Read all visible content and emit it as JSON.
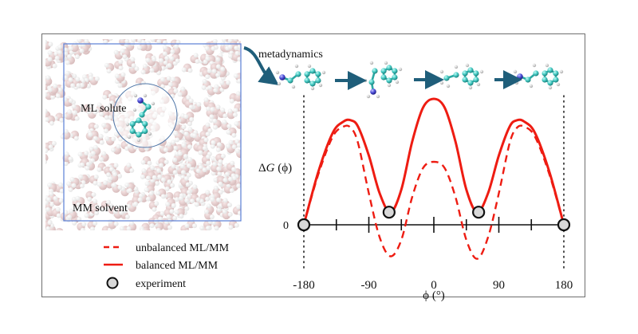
{
  "simulation_box": {
    "solute_label": "ML solute",
    "solvent_label": "MM solvent",
    "box_color": "#5b7fd6",
    "solute_circle_color": "#4f76a8"
  },
  "workflow": {
    "label": "metadynamics",
    "arrow_color": "#1f5e7a",
    "conformers": [
      "conformer-1",
      "conformer-2",
      "conformer-3",
      "conformer-4"
    ]
  },
  "legend": {
    "items": [
      {
        "label": "unbalanced ML/MM",
        "style": "dashed"
      },
      {
        "label": "balanced ML/MM",
        "style": "solid"
      },
      {
        "label": "experiment",
        "style": "marker"
      }
    ]
  },
  "chart_data": {
    "type": "line",
    "title": "",
    "xlabel": "ϕ (°)",
    "ylabel": "ΔG (ϕ)",
    "ylabel_parts": {
      "delta": "Δ",
      "var": "G",
      "arg": " (ϕ)"
    },
    "xlim": [
      -180,
      180
    ],
    "x_ticks": [
      -180,
      -90,
      0,
      90,
      180
    ],
    "x_tick_labels": [
      "-180",
      "-90",
      "0",
      "90",
      "180"
    ],
    "x_minor_ticks": [
      -135,
      -45,
      45,
      135
    ],
    "y_ticks": [
      0
    ],
    "y_tick_labels": [
      "0"
    ],
    "ylim_relative": [
      -0.27,
      1.0
    ],
    "grid": false,
    "legend_position": "bottom-left",
    "line_color": "#ee1c12",
    "series": [
      {
        "name": "balanced ML/MM",
        "style": "solid",
        "x": [
          -180,
          -160,
          -140,
          -125,
          -115,
          -105,
          -90,
          -75,
          -60,
          -45,
          -30,
          -15,
          0,
          15,
          30,
          45,
          60,
          75,
          90,
          105,
          115,
          125,
          140,
          160,
          180
        ],
        "y": [
          0.0,
          0.42,
          0.73,
          0.82,
          0.83,
          0.78,
          0.55,
          0.25,
          0.1,
          0.28,
          0.66,
          0.93,
          1.0,
          0.93,
          0.66,
          0.28,
          0.1,
          0.25,
          0.55,
          0.78,
          0.83,
          0.82,
          0.73,
          0.42,
          0.0
        ]
      },
      {
        "name": "unbalanced ML/MM",
        "style": "dashed",
        "x": [
          -180,
          -160,
          -140,
          -125,
          -115,
          -105,
          -90,
          -75,
          -60,
          -45,
          -30,
          -15,
          0,
          15,
          30,
          45,
          60,
          75,
          90,
          105,
          115,
          125,
          140,
          160,
          180
        ],
        "y": [
          0.0,
          0.4,
          0.7,
          0.78,
          0.77,
          0.65,
          0.25,
          -0.1,
          -0.25,
          -0.12,
          0.22,
          0.45,
          0.5,
          0.45,
          0.22,
          -0.12,
          -0.27,
          -0.1,
          0.25,
          0.65,
          0.77,
          0.78,
          0.7,
          0.4,
          0.0
        ]
      },
      {
        "name": "experiment",
        "style": "marker",
        "x": [
          -180,
          -62,
          62,
          180
        ],
        "y": [
          0.0,
          0.1,
          0.1,
          0.0
        ]
      }
    ]
  }
}
